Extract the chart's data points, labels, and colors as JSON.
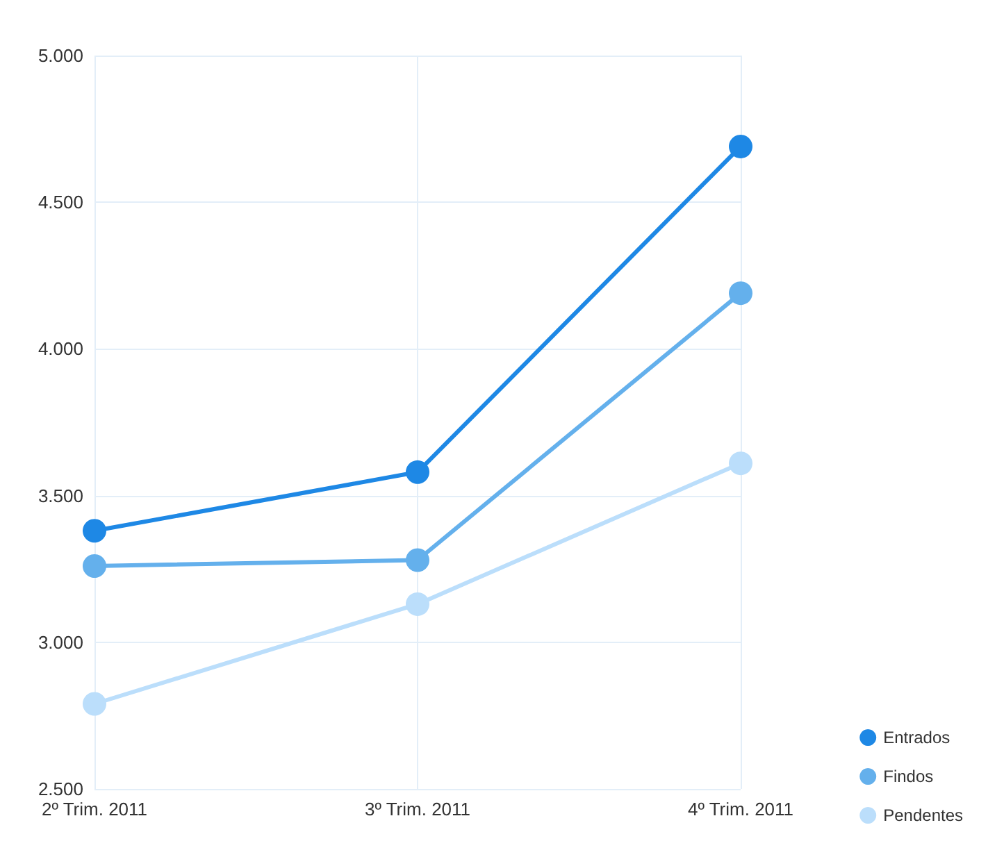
{
  "chart_data": {
    "type": "line",
    "categories": [
      "2º Trim. 2011",
      "3º Trim. 2011",
      "4º Trim. 2011"
    ],
    "series": [
      {
        "name": "Entrados",
        "color": "#1e88e5",
        "values": [
          3380,
          3580,
          4690
        ]
      },
      {
        "name": "Findos",
        "color": "#64b0ec",
        "values": [
          3260,
          3280,
          4190
        ]
      },
      {
        "name": "Pendentes",
        "color": "#bbdefb",
        "values": [
          2790,
          3130,
          3610
        ]
      }
    ],
    "ylim": [
      2500,
      5000
    ],
    "yticks": [
      {
        "value": 2500,
        "label": "2.500"
      },
      {
        "value": 3000,
        "label": "3.000"
      },
      {
        "value": 3500,
        "label": "3.500"
      },
      {
        "value": 4000,
        "label": "4.000"
      },
      {
        "value": 4500,
        "label": "4.500"
      },
      {
        "value": 5000,
        "label": "5.000"
      }
    ],
    "grid": true,
    "legend": "bottom right",
    "marker": "circle",
    "line_style": "solid"
  }
}
